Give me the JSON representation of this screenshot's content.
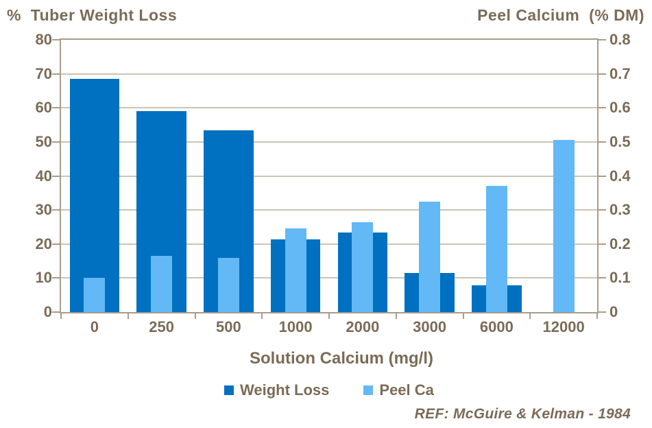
{
  "titles": {
    "left": "%  Tuber Weight Loss",
    "right": "Peel Calcium  (% DM)"
  },
  "chart_data": {
    "type": "bar",
    "title": "% Tuber Weight Loss vs Peel Calcium (% DM)",
    "categories": [
      "0",
      "250",
      "500",
      "1000",
      "2000",
      "3000",
      "6000",
      "12000"
    ],
    "series": [
      {
        "name": "Weight Loss",
        "axis": "left",
        "color": "#0070C0",
        "values": [
          68.5,
          59.0,
          53.5,
          21.3,
          23.4,
          11.4,
          7.8,
          null
        ]
      },
      {
        "name": "Peel Ca",
        "axis": "right",
        "color": "#63B8F6",
        "values": [
          0.1,
          0.165,
          0.16,
          0.245,
          0.265,
          0.325,
          0.37,
          0.505
        ]
      }
    ],
    "xlabel": "Solution Calcium (mg/l)",
    "left_axis": {
      "min": 0,
      "max": 80,
      "ticks": [
        "80",
        "70",
        "60",
        "50",
        "40",
        "30",
        "20",
        "10",
        "0"
      ]
    },
    "right_axis": {
      "min": 0,
      "max": 0.8,
      "ticks": [
        "0.8",
        "0.7",
        "0.6",
        "0.5",
        "0.4",
        "0.3",
        "0.2",
        "0.1",
        "0"
      ]
    },
    "grid": true,
    "legend_position": "bottom"
  },
  "footer": {
    "reference": "REF: McGuire & Kelman - 1984"
  },
  "colors": {
    "weight_loss_bar": "#0070C0",
    "peel_ca_bar": "#63B8F6",
    "text": "#7B6B56",
    "gridline": "#CDC3B4",
    "axis_line": "#A89B8A",
    "background": "#FFFFFF"
  }
}
